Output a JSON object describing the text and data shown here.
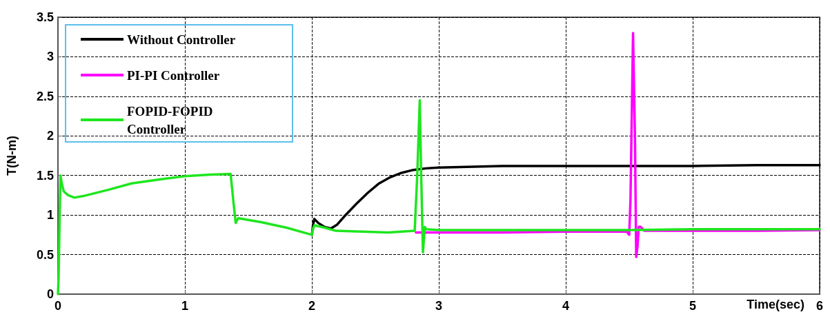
{
  "chart_data": {
    "type": "line",
    "xlabel": "Time(sec)",
    "ylabel": "T(N-m)",
    "xlim": [
      0,
      6
    ],
    "xticks": [
      0,
      1,
      2,
      3,
      4,
      5,
      6
    ],
    "ylim": [
      0,
      3.5
    ],
    "yticks": [
      0,
      0.5,
      1,
      1.5,
      2,
      2.5,
      3,
      3.5
    ],
    "grid": true,
    "legend": "top left",
    "marker": "none",
    "line_style": "solid",
    "series": [
      {
        "name": "Without Controller",
        "color": "#000000",
        "x": [
          2.0,
          2.01,
          2.02,
          2.05,
          2.1,
          2.15,
          2.2,
          2.26,
          2.35,
          2.44,
          2.53,
          2.62,
          2.7,
          2.8,
          2.9,
          3.0,
          3.5,
          4.0,
          4.5,
          5.0,
          5.5,
          6.0
        ],
        "values": [
          0.75,
          0.88,
          0.95,
          0.9,
          0.85,
          0.83,
          0.88,
          0.99,
          1.14,
          1.28,
          1.4,
          1.48,
          1.53,
          1.57,
          1.59,
          1.6,
          1.62,
          1.62,
          1.62,
          1.62,
          1.63,
          1.63
        ]
      },
      {
        "name": "PI-PI Controller",
        "color": "#ff00ff",
        "x": [
          2.82,
          3.0,
          3.5,
          4.0,
          4.48,
          4.5,
          4.51,
          4.53,
          4.545,
          4.555,
          4.565,
          4.575,
          4.59,
          4.62,
          5.0,
          5.5,
          6.0
        ],
        "values": [
          0.78,
          0.78,
          0.78,
          0.79,
          0.79,
          0.75,
          1.2,
          3.3,
          2.0,
          0.47,
          0.6,
          0.85,
          0.85,
          0.8,
          0.8,
          0.8,
          0.81
        ]
      },
      {
        "name": "FOPID-FOPID Controller",
        "color": "#1ee61e",
        "x": [
          0,
          0.005,
          0.016,
          0.02,
          0.03,
          0.045,
          0.08,
          0.13,
          0.2,
          0.4,
          0.58,
          0.8,
          1.0,
          1.2,
          1.36,
          1.38,
          1.4,
          1.42,
          1.6,
          1.8,
          2.0,
          2.01,
          2.02,
          2.1,
          2.19,
          2.4,
          2.6,
          2.81,
          2.83,
          2.85,
          2.86,
          2.875,
          2.89,
          2.9,
          3.0,
          3.5,
          4.0,
          4.5,
          5.0,
          5.5,
          6.0
        ],
        "values": [
          0,
          0.2,
          1.2,
          1.5,
          1.4,
          1.3,
          1.25,
          1.22,
          1.24,
          1.32,
          1.4,
          1.45,
          1.49,
          1.51,
          1.52,
          1.2,
          0.9,
          0.96,
          0.91,
          0.84,
          0.75,
          0.83,
          0.87,
          0.84,
          0.8,
          0.79,
          0.78,
          0.8,
          1.5,
          2.45,
          1.6,
          0.53,
          0.85,
          0.82,
          0.81,
          0.81,
          0.81,
          0.81,
          0.82,
          0.82,
          0.82
        ]
      }
    ]
  }
}
